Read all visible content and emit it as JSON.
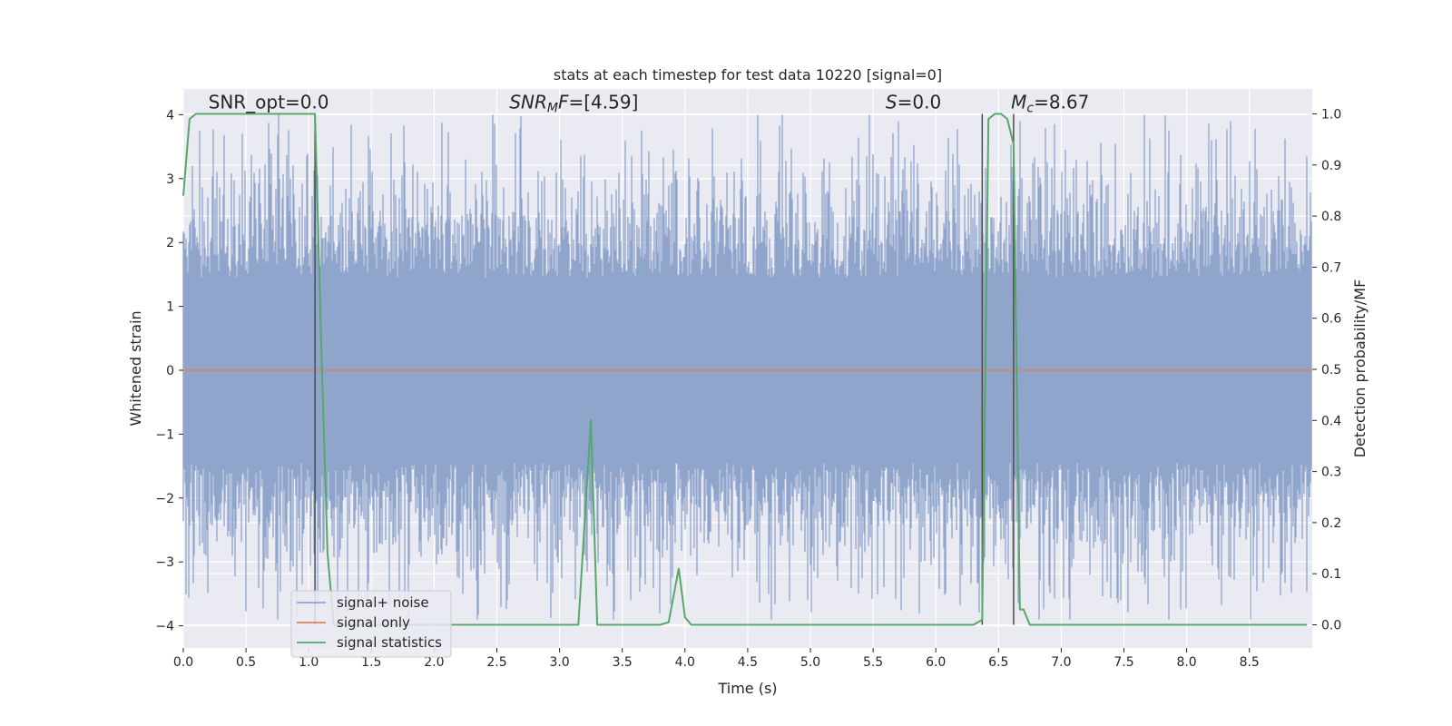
{
  "chart_data": {
    "type": "line",
    "title": "stats at each timestep for test data 10220 [signal=0]",
    "xlabel": "Time (s)",
    "ylabel": "Whitened strain",
    "y2label": "Detection probability/MF",
    "xlim": [
      0.0,
      9.0
    ],
    "ylim": [
      -4.4,
      4.4
    ],
    "y2lim": [
      -0.05,
      1.05
    ],
    "x_ticks": [
      0.0,
      0.5,
      1.0,
      1.5,
      2.0,
      2.5,
      3.0,
      3.5,
      4.0,
      4.5,
      5.0,
      5.5,
      6.0,
      6.5,
      7.0,
      7.5,
      8.0,
      8.5
    ],
    "x_tick_labels": [
      "0.0",
      "0.5",
      "1.0",
      "1.5",
      "2.0",
      "2.5",
      "3.0",
      "3.5",
      "4.0",
      "4.5",
      "5.0",
      "5.5",
      "6.0",
      "6.5",
      "7.0",
      "7.5",
      "8.0",
      "8.5"
    ],
    "y_ticks": [
      4,
      3,
      2,
      1,
      0,
      -1,
      -2,
      -3,
      -4
    ],
    "y_tick_labels": [
      "4",
      "3",
      "2",
      "1",
      "0",
      "−1",
      "−2",
      "−3",
      "−4"
    ],
    "y2_ticks": [
      1.0,
      0.9,
      0.8,
      0.7,
      0.6,
      0.5,
      0.4,
      0.3,
      0.2,
      0.1,
      0.0
    ],
    "y2_tick_labels": [
      "1.0",
      "0.9",
      "0.8",
      "0.7",
      "0.6",
      "0.5",
      "0.4",
      "0.3",
      "0.2",
      "0.1",
      "0.0"
    ],
    "grid": true,
    "legend_position": "lower-left",
    "series": [
      {
        "name": "signal+ noise",
        "axis": "left",
        "color": "#8fa5cc",
        "description_values": "dense whitened noise, approximately within -3.9 to 4.0"
      },
      {
        "name": "signal only",
        "axis": "left",
        "color": "#dd8452",
        "x": [
          0.0,
          9.0
        ],
        "y": [
          0.0,
          0.0
        ]
      },
      {
        "name": "signal statistics",
        "axis": "right",
        "color": "#55a868",
        "x": [
          0.0,
          0.05,
          0.1,
          0.2,
          0.4,
          0.6,
          0.8,
          1.0,
          1.05,
          1.1,
          1.15,
          1.2,
          1.4,
          1.6,
          1.8,
          2.0,
          2.2,
          2.4,
          2.6,
          2.8,
          3.0,
          3.1,
          3.15,
          3.25,
          3.3,
          3.4,
          3.6,
          3.8,
          3.87,
          3.95,
          4.0,
          4.05,
          4.1,
          4.3,
          4.5,
          5.0,
          5.5,
          6.0,
          6.3,
          6.37,
          6.42,
          6.47,
          6.52,
          6.57,
          6.62,
          6.67,
          6.7,
          6.75,
          6.8,
          7.0,
          7.5,
          8.0,
          8.5,
          8.96
        ],
        "y": [
          0.84,
          0.99,
          1.0,
          1.0,
          1.0,
          1.0,
          1.0,
          1.0,
          1.0,
          0.55,
          0.14,
          0.0,
          0.0,
          0.0,
          0.0,
          0.0,
          0.0,
          0.0,
          0.0,
          0.0,
          0.0,
          0.0,
          0.0,
          0.4,
          0.0,
          0.0,
          0.0,
          0.0,
          0.005,
          0.11,
          0.015,
          0.0,
          0.0,
          0.0,
          0.0,
          0.0,
          0.0,
          0.0,
          0.0,
          0.01,
          0.99,
          1.0,
          1.0,
          0.99,
          0.94,
          0.03,
          0.03,
          0.0,
          0.0,
          0.0,
          0.0,
          0.0,
          0.0,
          0.0
        ]
      }
    ],
    "vlines": [
      {
        "x": 1.05,
        "color": "#4d4d4d"
      },
      {
        "x": 6.37,
        "color": "#4d4d4d"
      },
      {
        "x": 6.62,
        "color": "#4d4d4d"
      }
    ],
    "annotations": [
      {
        "text": "SNR_opt=0.0",
        "x": 0.2,
        "y": 4.1
      },
      {
        "text": "SNR_MF=[4.59]",
        "main": "SNR",
        "sub": "M",
        "after": "F=[4.59]",
        "x": 2.6,
        "y": 4.1
      },
      {
        "text": "S=0.0",
        "main": "S",
        "after": "=0.0",
        "x": 5.6,
        "y": 4.1
      },
      {
        "text": "M_c=8.67",
        "main": "M",
        "sub": "c",
        "after": "=8.67",
        "x": 6.6,
        "y": 4.1
      }
    ]
  }
}
